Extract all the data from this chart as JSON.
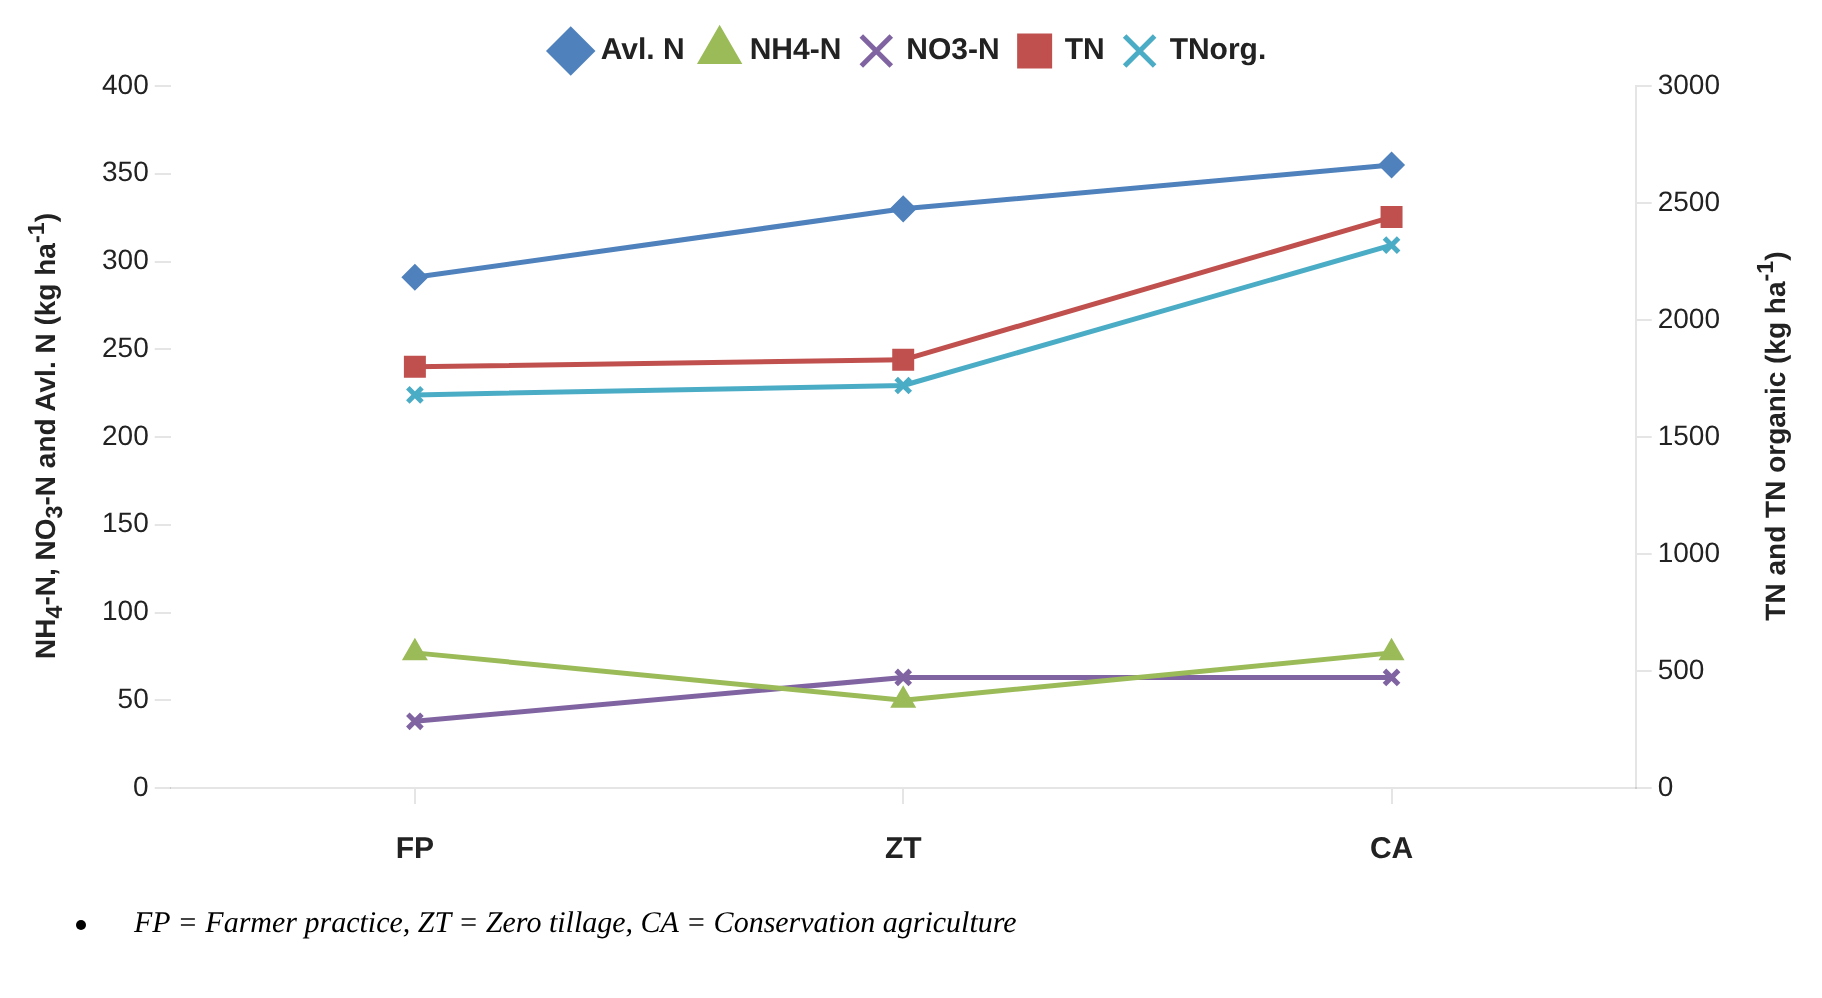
{
  "chart_data": {
    "type": "line",
    "categories": [
      "FP",
      "ZT",
      "CA"
    ],
    "series": [
      {
        "name": "Avl. N",
        "color": "#4f81bd",
        "marker": "diamond",
        "values": [
          291,
          330,
          355
        ]
      },
      {
        "name": "NH4-N",
        "color": "#9bbb59",
        "marker": "triangle",
        "values": [
          77,
          50,
          77
        ]
      },
      {
        "name": "NO3-N",
        "color": "#8064a2",
        "marker": "cross",
        "values": [
          38,
          63,
          63
        ]
      },
      {
        "name": "TN",
        "color": "#c0504d",
        "marker": "square",
        "axis": "y2",
        "values": [
          1800,
          1830,
          2440
        ]
      },
      {
        "name": "TNorg.",
        "color": "#4bacc6",
        "marker": "cross",
        "axis": "y2",
        "values": [
          1680,
          1720,
          2320
        ]
      }
    ],
    "ylabel": "NH$_{4}$-N, NO$_{3}$-N and Avl. N (kg ha$^{-1}$)",
    "y2label": "TN and TN organic (kg ha$^{-1}$)",
    "ylim": [
      0,
      400
    ],
    "yticks": [
      0,
      50,
      100,
      150,
      200,
      250,
      300,
      350,
      400
    ],
    "y2lim": [
      0,
      3000
    ],
    "y2ticks": [
      0,
      500,
      1000,
      1500,
      2000,
      2500,
      3000
    ],
    "grid": false,
    "legend": "top",
    "line_style": "solid",
    "annotations": [
      "FP = Farmer practice,  ZT = Zero tillage, CA = Conservation agriculture"
    ]
  }
}
